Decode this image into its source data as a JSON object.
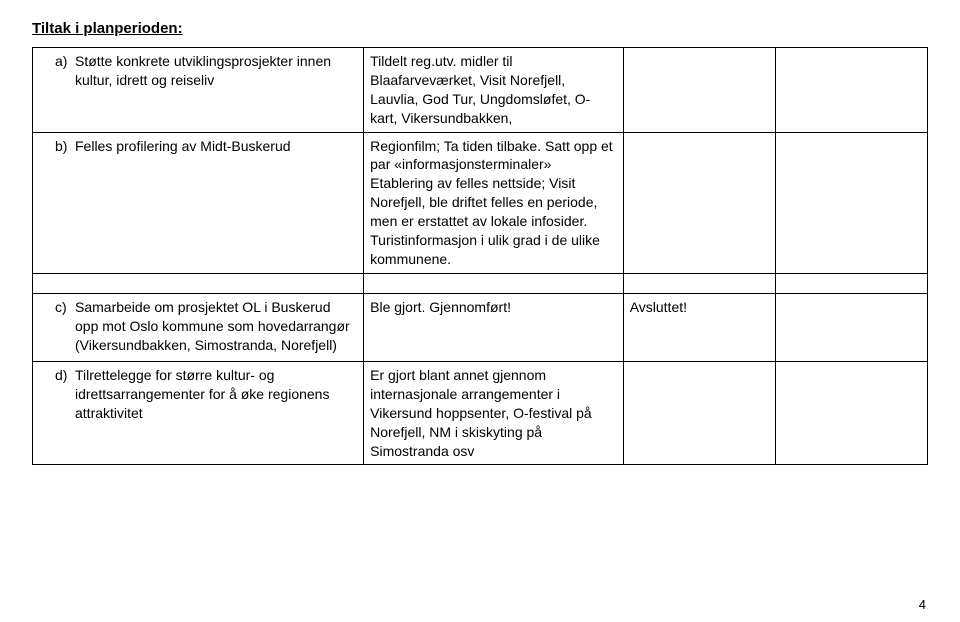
{
  "heading": "Tiltak i planperioden:",
  "table1": {
    "rows": [
      {
        "marker": "a)",
        "left": "Støtte konkrete utviklingsprosjekter innen kultur, idrett og reiseliv",
        "right": "Tildelt reg.utv. midler til Blaafarveværket, Visit Norefjell, Lauvlia, God Tur, Ungdomsløfet, O-kart, Vikersundbakken,"
      },
      {
        "marker": "b)",
        "left": "Felles profilering av Midt-Buskerud",
        "right": "Regionfilm; Ta tiden tilbake. Satt opp et par «informasjonsterminaler» Etablering av felles nettside; Visit Norefjell, ble driftet felles en periode, men er erstattet av lokale infosider. Turistinformasjon i ulik grad i de ulike kommunene."
      }
    ]
  },
  "table2": {
    "rows": [
      {
        "marker": "c)",
        "left": "Samarbeide om prosjektet OL i Buskerud opp mot Oslo kommune som hovedarrangør (Vikersundbakken, Simostranda, Norefjell)",
        "mid": "Ble gjort. Gjennomført!",
        "status": "Avsluttet!"
      },
      {
        "marker": "d)",
        "left": "Tilrettelegge for større kultur- og idrettsarrangementer for å øke regionens attraktivitet",
        "mid": "Er gjort blant annet gjennom internasjonale arrangementer i Vikersund hoppsenter, O-festival på Norefjell, NM i skiskyting på Simostranda osv",
        "status": ""
      }
    ]
  },
  "page_number": "4"
}
